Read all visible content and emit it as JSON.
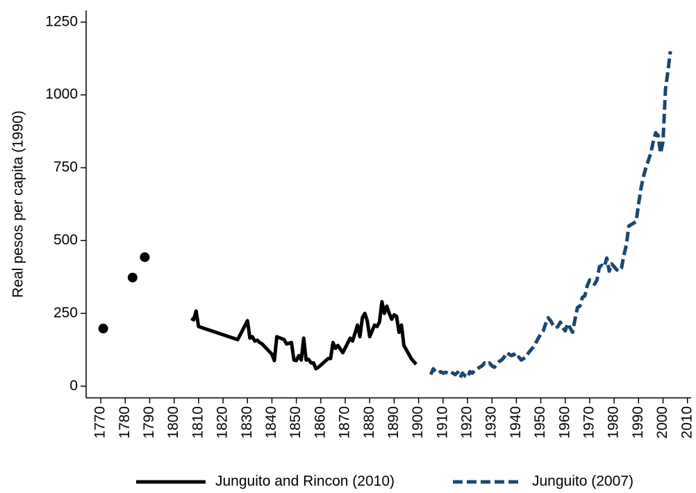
{
  "chart_data": {
    "type": "line",
    "y_label": "Real pesos per capita (1990)",
    "xlim": [
      1764,
      2011.5
    ],
    "ylim": [
      -40,
      1290
    ],
    "xticks": [
      1770,
      1780,
      1790,
      1800,
      1810,
      1820,
      1830,
      1840,
      1850,
      1860,
      1870,
      1880,
      1890,
      1900,
      1910,
      1920,
      1930,
      1940,
      1950,
      1960,
      1970,
      1980,
      1990,
      2000,
      2010
    ],
    "yticks": [
      0,
      250,
      500,
      750,
      1000,
      1250
    ],
    "legend": "bottom",
    "markers": {
      "color": "#000000",
      "x": [
        1771,
        1783,
        1788
      ],
      "values": [
        198,
        373,
        443
      ]
    },
    "series": [
      {
        "name": "Junguito and Rincon (2010)",
        "color": "#000000",
        "dashed": false,
        "x": [
          1807,
          1808,
          1809,
          1810,
          1826,
          1830,
          1831,
          1832,
          1833,
          1834,
          1835,
          1836,
          1840,
          1841,
          1842,
          1845,
          1846,
          1848,
          1849,
          1850,
          1851,
          1852,
          1853,
          1854,
          1855,
          1856,
          1857,
          1858,
          1859,
          1863,
          1864,
          1865,
          1866,
          1867,
          1869,
          1872,
          1873,
          1875,
          1876,
          1877,
          1878,
          1879,
          1880,
          1881,
          1882,
          1883,
          1884,
          1885,
          1886,
          1887,
          1888,
          1889,
          1890,
          1891,
          1892,
          1893,
          1894,
          1896,
          1897,
          1898,
          1899
        ],
        "values": [
          233,
          228,
          258,
          205,
          160,
          225,
          165,
          170,
          155,
          158,
          150,
          145,
          110,
          88,
          170,
          160,
          145,
          150,
          90,
          88,
          105,
          90,
          165,
          90,
          92,
          80,
          80,
          60,
          65,
          95,
          95,
          150,
          130,
          140,
          115,
          165,
          155,
          210,
          170,
          235,
          250,
          225,
          170,
          190,
          210,
          205,
          220,
          290,
          250,
          275,
          250,
          230,
          245,
          240,
          185,
          210,
          140,
          110,
          95,
          85,
          75
        ]
      },
      {
        "name": "Junguito (2007)",
        "color": "#1a476f",
        "dashed": true,
        "x": [
          1905,
          1906,
          1907,
          1908,
          1909,
          1910,
          1911,
          1912,
          1913,
          1914,
          1915,
          1916,
          1917,
          1918,
          1919,
          1920,
          1921,
          1922,
          1923,
          1924,
          1925,
          1926,
          1927,
          1928,
          1929,
          1930,
          1931,
          1932,
          1933,
          1934,
          1935,
          1936,
          1937,
          1938,
          1939,
          1940,
          1941,
          1942,
          1943,
          1944,
          1945,
          1946,
          1947,
          1948,
          1949,
          1950,
          1951,
          1952,
          1953,
          1954,
          1955,
          1956,
          1957,
          1958,
          1959,
          1960,
          1961,
          1962,
          1963,
          1964,
          1965,
          1966,
          1967,
          1968,
          1969,
          1970,
          1971,
          1972,
          1973,
          1974,
          1975,
          1976,
          1977,
          1978,
          1979,
          1980,
          1981,
          1982,
          1983,
          1984,
          1985,
          1986,
          1987,
          1988,
          1989,
          1990,
          1991,
          1992,
          1993,
          1994,
          1995,
          1996,
          1997,
          1998,
          1999,
          2000,
          2001,
          2002,
          2003
        ],
        "values": [
          40,
          60,
          50,
          45,
          50,
          45,
          48,
          45,
          50,
          45,
          40,
          48,
          30,
          45,
          35,
          30,
          50,
          45,
          55,
          60,
          65,
          70,
          80,
          75,
          80,
          70,
          65,
          75,
          85,
          90,
          100,
          115,
          110,
          105,
          110,
          95,
          100,
          90,
          95,
          100,
          115,
          125,
          135,
          150,
          165,
          180,
          190,
          215,
          235,
          225,
          210,
          200,
          205,
          220,
          200,
          190,
          215,
          200,
          185,
          230,
          270,
          275,
          305,
          310,
          345,
          365,
          360,
          350,
          365,
          410,
          415,
          410,
          440,
          395,
          420,
          410,
          400,
          395,
          405,
          450,
          485,
          550,
          555,
          560,
          565,
          625,
          680,
          720,
          750,
          775,
          800,
          840,
          870,
          860,
          800,
          840,
          1020,
          1080,
          1150
        ]
      }
    ]
  }
}
